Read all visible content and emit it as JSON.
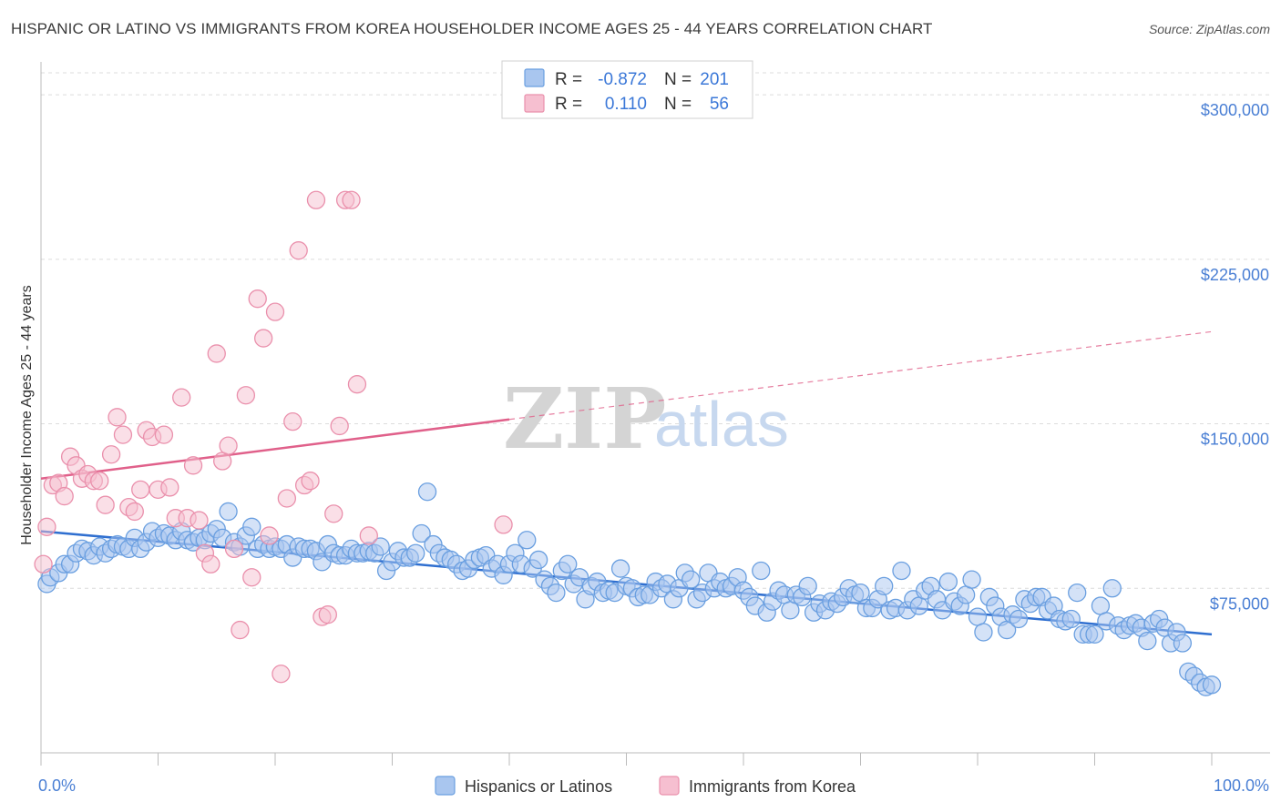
{
  "title": "HISPANIC OR LATINO VS IMMIGRANTS FROM KOREA HOUSEHOLDER INCOME AGES 25 - 44 YEARS CORRELATION CHART",
  "source": "Source: ZipAtlas.com",
  "watermark": {
    "zip": "ZIP",
    "atlas": "atlas"
  },
  "chart_data": {
    "type": "scatter",
    "title": "HISPANIC OR LATINO VS IMMIGRANTS FROM KOREA HOUSEHOLDER INCOME AGES 25 - 44 YEARS CORRELATION CHART",
    "xlabel": "",
    "ylabel": "Householder Income Ages 25 - 44 years",
    "xlim": [
      0,
      100
    ],
    "ylim": [
      0,
      310000
    ],
    "x_tick_labels": [
      "0.0%",
      "100.0%"
    ],
    "y_ticks": [
      75000,
      150000,
      225000,
      300000
    ],
    "y_tick_labels": [
      "$75,000",
      "$150,000",
      "$225,000",
      "$300,000"
    ],
    "grid": "horizontal dashed",
    "legend_placement": "bottom-center",
    "stats": [
      {
        "r_label": "R =",
        "r": "-0.872",
        "n_label": "N =",
        "n": "201"
      },
      {
        "r_label": "R =",
        "r": "0.110",
        "n_label": "N =",
        "n": "56"
      }
    ],
    "series": [
      {
        "name": "Hispanics or Latinos",
        "color": "#6a9fe0",
        "fill": "#a9c6ef",
        "line_color": "#2f6fd0",
        "trend": {
          "x0": 0,
          "y0": 101000,
          "x1": 100,
          "y1": 54000
        },
        "points": [
          [
            0.5,
            77000
          ],
          [
            0.8,
            80000
          ],
          [
            1.5,
            82000
          ],
          [
            2,
            86000
          ],
          [
            2.5,
            86000
          ],
          [
            3,
            91000
          ],
          [
            3.5,
            93000
          ],
          [
            4,
            92000
          ],
          [
            4.5,
            90000
          ],
          [
            5,
            94000
          ],
          [
            5.5,
            91000
          ],
          [
            6,
            93000
          ],
          [
            6.5,
            95000
          ],
          [
            7,
            94000
          ],
          [
            7.5,
            93000
          ],
          [
            8,
            98000
          ],
          [
            8.5,
            93000
          ],
          [
            9,
            96000
          ],
          [
            9.5,
            101000
          ],
          [
            10,
            98000
          ],
          [
            10.5,
            100000
          ],
          [
            11,
            99000
          ],
          [
            11.5,
            97000
          ],
          [
            12,
            101000
          ],
          [
            12.5,
            97000
          ],
          [
            13,
            96000
          ],
          [
            13.5,
            98000
          ],
          [
            14,
            97000
          ],
          [
            14.5,
            100000
          ],
          [
            15,
            102000
          ],
          [
            15.5,
            98000
          ],
          [
            16,
            110000
          ],
          [
            16.5,
            96000
          ],
          [
            17,
            94000
          ],
          [
            17.5,
            99000
          ],
          [
            18,
            103000
          ],
          [
            18.5,
            93000
          ],
          [
            19,
            95000
          ],
          [
            19.5,
            93000
          ],
          [
            20,
            94000
          ],
          [
            20.5,
            93000
          ],
          [
            21,
            95000
          ],
          [
            21.5,
            89000
          ],
          [
            22,
            94000
          ],
          [
            22.5,
            93000
          ],
          [
            23,
            93000
          ],
          [
            23.5,
            92000
          ],
          [
            24,
            87000
          ],
          [
            24.5,
            95000
          ],
          [
            25,
            91000
          ],
          [
            25.5,
            90000
          ],
          [
            26,
            90000
          ],
          [
            26.5,
            93000
          ],
          [
            27,
            91000
          ],
          [
            27.5,
            91000
          ],
          [
            28,
            92000
          ],
          [
            28.5,
            91000
          ],
          [
            29,
            94000
          ],
          [
            29.5,
            83000
          ],
          [
            30,
            87000
          ],
          [
            30.5,
            92000
          ],
          [
            31,
            89000
          ],
          [
            31.5,
            89000
          ],
          [
            32,
            91000
          ],
          [
            32.5,
            100000
          ],
          [
            33,
            119000
          ],
          [
            33.5,
            95000
          ],
          [
            34,
            91000
          ],
          [
            34.5,
            89000
          ],
          [
            35,
            88000
          ],
          [
            35.5,
            86000
          ],
          [
            36,
            83000
          ],
          [
            36.5,
            84000
          ],
          [
            37,
            88000
          ],
          [
            37.5,
            89000
          ],
          [
            38,
            90000
          ],
          [
            38.5,
            84000
          ],
          [
            39,
            86000
          ],
          [
            39.5,
            81000
          ],
          [
            40,
            86000
          ],
          [
            40.5,
            91000
          ],
          [
            41,
            86000
          ],
          [
            41.5,
            97000
          ],
          [
            42,
            84000
          ],
          [
            42.5,
            88000
          ],
          [
            43,
            79000
          ],
          [
            43.5,
            76000
          ],
          [
            44,
            73000
          ],
          [
            44.5,
            83000
          ],
          [
            45,
            86000
          ],
          [
            45.5,
            77000
          ],
          [
            46,
            80000
          ],
          [
            46.5,
            70000
          ],
          [
            47,
            76000
          ],
          [
            47.5,
            78000
          ],
          [
            48,
            73000
          ],
          [
            48.5,
            74000
          ],
          [
            49,
            73000
          ],
          [
            49.5,
            84000
          ],
          [
            50,
            76000
          ],
          [
            50.5,
            75000
          ],
          [
            51,
            71000
          ],
          [
            51.5,
            72000
          ],
          [
            52,
            72000
          ],
          [
            52.5,
            78000
          ],
          [
            53,
            75000
          ],
          [
            53.5,
            77000
          ],
          [
            54,
            70000
          ],
          [
            54.5,
            75000
          ],
          [
            55,
            82000
          ],
          [
            55.5,
            79000
          ],
          [
            56,
            70000
          ],
          [
            56.5,
            73000
          ],
          [
            57,
            82000
          ],
          [
            57.5,
            75000
          ],
          [
            58,
            78000
          ],
          [
            58.5,
            75000
          ],
          [
            59,
            76000
          ],
          [
            59.5,
            80000
          ],
          [
            60,
            74000
          ],
          [
            60.5,
            71000
          ],
          [
            61,
            67000
          ],
          [
            61.5,
            83000
          ],
          [
            62,
            64000
          ],
          [
            62.5,
            69000
          ],
          [
            63,
            74000
          ],
          [
            63.5,
            72000
          ],
          [
            64,
            65000
          ],
          [
            64.5,
            72000
          ],
          [
            65,
            71000
          ],
          [
            65.5,
            76000
          ],
          [
            66,
            64000
          ],
          [
            66.5,
            68000
          ],
          [
            67,
            65000
          ],
          [
            67.5,
            69000
          ],
          [
            68,
            68000
          ],
          [
            68.5,
            71000
          ],
          [
            69,
            75000
          ],
          [
            69.5,
            72000
          ],
          [
            70,
            73000
          ],
          [
            70.5,
            66000
          ],
          [
            71,
            66000
          ],
          [
            71.5,
            70000
          ],
          [
            72,
            76000
          ],
          [
            72.5,
            65000
          ],
          [
            73,
            66000
          ],
          [
            73.5,
            83000
          ],
          [
            74,
            65000
          ],
          [
            74.5,
            70000
          ],
          [
            75,
            67000
          ],
          [
            75.5,
            74000
          ],
          [
            76,
            76000
          ],
          [
            76.5,
            70000
          ],
          [
            77,
            65000
          ],
          [
            77.5,
            78000
          ],
          [
            78,
            69000
          ],
          [
            78.5,
            67000
          ],
          [
            79,
            72000
          ],
          [
            79.5,
            79000
          ],
          [
            80,
            62000
          ],
          [
            80.5,
            55000
          ],
          [
            81,
            71000
          ],
          [
            81.5,
            67000
          ],
          [
            82,
            62000
          ],
          [
            82.5,
            56000
          ],
          [
            83,
            63000
          ],
          [
            83.5,
            61000
          ],
          [
            84,
            70000
          ],
          [
            84.5,
            68000
          ],
          [
            85,
            71000
          ],
          [
            85.5,
            71000
          ],
          [
            86,
            65000
          ],
          [
            86.5,
            67000
          ],
          [
            87,
            61000
          ],
          [
            87.5,
            60000
          ],
          [
            88,
            61000
          ],
          [
            88.5,
            73000
          ],
          [
            89,
            54000
          ],
          [
            89.5,
            54000
          ],
          [
            90,
            54000
          ],
          [
            90.5,
            67000
          ],
          [
            91,
            60000
          ],
          [
            91.5,
            75000
          ],
          [
            92,
            58000
          ],
          [
            92.5,
            56000
          ],
          [
            93,
            58000
          ],
          [
            93.5,
            59000
          ],
          [
            94,
            57000
          ],
          [
            94.5,
            51000
          ],
          [
            95,
            59000
          ],
          [
            95.5,
            61000
          ],
          [
            96,
            57000
          ],
          [
            96.5,
            50000
          ],
          [
            97,
            55000
          ],
          [
            97.5,
            50000
          ],
          [
            98,
            37000
          ],
          [
            98.5,
            35000
          ],
          [
            99,
            32000
          ],
          [
            99.5,
            30000
          ],
          [
            100,
            31000
          ]
        ]
      },
      {
        "name": "Immigrants from Korea",
        "color": "#ea90ac",
        "fill": "#f6bfd0",
        "line_color": "#e0608a",
        "trend": {
          "x0": 0,
          "y0": 125000,
          "x1": 40,
          "y1": 152000,
          "dash_x1": 100,
          "dash_y1": 192000
        },
        "points": [
          [
            0.2,
            86000
          ],
          [
            0.5,
            103000
          ],
          [
            1,
            122000
          ],
          [
            1.5,
            123000
          ],
          [
            2,
            117000
          ],
          [
            2.5,
            135000
          ],
          [
            3,
            131000
          ],
          [
            3.5,
            125000
          ],
          [
            4,
            127000
          ],
          [
            4.5,
            124000
          ],
          [
            5,
            124000
          ],
          [
            5.5,
            113000
          ],
          [
            6,
            136000
          ],
          [
            6.5,
            153000
          ],
          [
            7,
            145000
          ],
          [
            7.5,
            112000
          ],
          [
            8,
            110000
          ],
          [
            8.5,
            120000
          ],
          [
            9,
            147000
          ],
          [
            9.5,
            144000
          ],
          [
            10,
            120000
          ],
          [
            10.5,
            145000
          ],
          [
            11,
            121000
          ],
          [
            11.5,
            107000
          ],
          [
            12,
            162000
          ],
          [
            12.5,
            107000
          ],
          [
            13,
            131000
          ],
          [
            13.5,
            106000
          ],
          [
            14,
            91000
          ],
          [
            14.5,
            86000
          ],
          [
            15,
            182000
          ],
          [
            15.5,
            133000
          ],
          [
            16,
            140000
          ],
          [
            16.5,
            93000
          ],
          [
            17,
            56000
          ],
          [
            17.5,
            163000
          ],
          [
            18,
            80000
          ],
          [
            18.5,
            207000
          ],
          [
            19,
            189000
          ],
          [
            19.5,
            99000
          ],
          [
            20,
            201000
          ],
          [
            20.5,
            36000
          ],
          [
            21,
            116000
          ],
          [
            21.5,
            151000
          ],
          [
            22,
            229000
          ],
          [
            22.5,
            122000
          ],
          [
            23,
            124000
          ],
          [
            23.5,
            252000
          ],
          [
            24,
            62000
          ],
          [
            24.5,
            63000
          ],
          [
            25,
            109000
          ],
          [
            25.5,
            149000
          ],
          [
            26,
            252000
          ],
          [
            26.5,
            252000
          ],
          [
            27,
            168000
          ],
          [
            28,
            99000
          ],
          [
            39.5,
            104000
          ]
        ]
      }
    ]
  },
  "legend": {
    "items": [
      {
        "label": "Hispanics or Latinos",
        "color": "#6a9fe0",
        "fill": "#a9c6ef"
      },
      {
        "label": "Immigrants from Korea",
        "color": "#ea90ac",
        "fill": "#f6bfd0"
      }
    ]
  }
}
